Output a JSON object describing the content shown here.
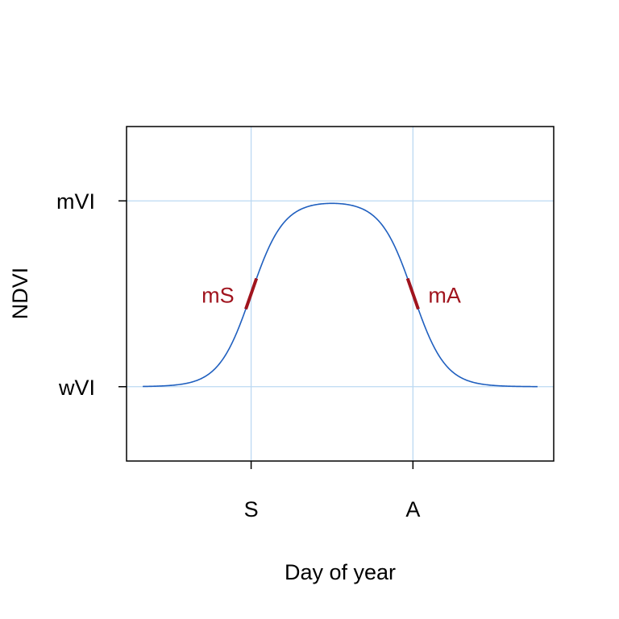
{
  "chart_data": {
    "type": "line",
    "title": "",
    "xlabel": "Day of year",
    "ylabel": "NDVI",
    "grid": true,
    "xlim": [
      -33,
      231
    ],
    "ylim": [
      -0.4,
      1.4
    ],
    "x_ticks": [
      {
        "value": 44,
        "label": "S"
      },
      {
        "value": 144,
        "label": "A"
      }
    ],
    "y_ticks": [
      {
        "value": 0,
        "label": "wVI"
      },
      {
        "value": 1,
        "label": "mVI"
      }
    ],
    "series": [
      {
        "curve": "double-logistic",
        "wVI": 0,
        "mVI": 1,
        "S": 44,
        "A": 144,
        "mS": 0.1,
        "mA": 0.1,
        "x_range": [
          -23,
          221
        ]
      }
    ],
    "annotations": [
      {
        "label": "mS",
        "at": "S",
        "type": "slope-segment"
      },
      {
        "label": "mA",
        "at": "A",
        "type": "slope-segment"
      }
    ],
    "colors": {
      "curve": "#1f5fbf",
      "annotation": "#a0141e",
      "grid": "#bcd9f2",
      "axis": "#000000"
    }
  }
}
